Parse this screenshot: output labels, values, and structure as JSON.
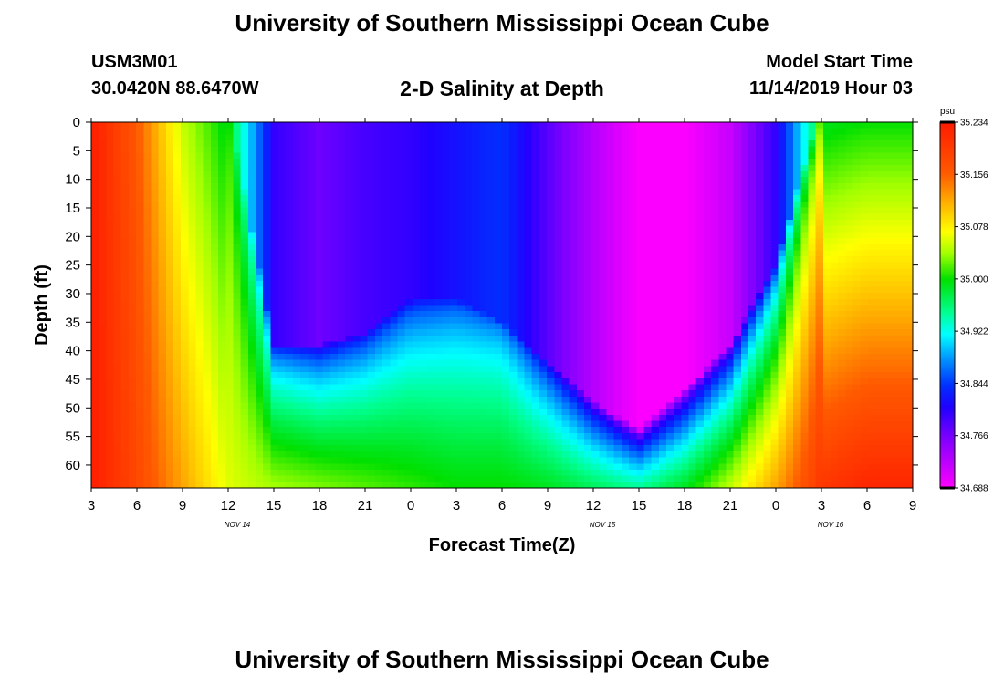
{
  "header": {
    "title": "University of Southern Mississippi Ocean Cube",
    "station_id": "USM3M01",
    "station_location": "30.0420N 88.6470W",
    "model_start_label": "Model Start Time",
    "model_start_value": "11/14/2019 Hour 03"
  },
  "footer": {
    "title": "University of Southern Mississippi Ocean Cube"
  },
  "colors": {
    "background": "#ffffff",
    "axis": "#000000"
  },
  "chart_data": {
    "type": "heatmap",
    "title": "2-D Salinity at Depth",
    "xlabel": "Forecast Time(Z)",
    "ylabel": "Depth (ft)",
    "x_ticks": [
      "3",
      "6",
      "9",
      "12",
      "15",
      "18",
      "21",
      "0",
      "3",
      "6",
      "9",
      "12",
      "15",
      "18",
      "21",
      "0",
      "3",
      "6",
      "9"
    ],
    "date_labels": [
      {
        "label": "NOV 14",
        "after_tick": 3
      },
      {
        "label": "NOV 15",
        "after_tick": 11
      },
      {
        "label": "NOV 16",
        "after_tick": 16
      }
    ],
    "y_ticks": [
      "0",
      "5",
      "10",
      "15",
      "20",
      "25",
      "30",
      "35",
      "40",
      "45",
      "50",
      "55",
      "60"
    ],
    "ylim": [
      0,
      64
    ],
    "colorbar": {
      "unit": "psu",
      "min": 34.688,
      "max": 35.234,
      "tick_labels": [
        "35.234",
        "35.156",
        "35.078",
        "35.000",
        "34.922",
        "34.844",
        "34.766",
        "34.688"
      ]
    },
    "field_description_hours": [
      0,
      3,
      6,
      9,
      12,
      15,
      18,
      21,
      24,
      27,
      30,
      33,
      36,
      39,
      42,
      45,
      48,
      51,
      54
    ],
    "freshwater_layer_bottom_ft": [
      0,
      0,
      0,
      0,
      42,
      42,
      40,
      34,
      34,
      38,
      45,
      52,
      57,
      50,
      42,
      28,
      0,
      0,
      0
    ],
    "freshwater_core_value_psu": [
      35.23,
      35.16,
      35.05,
      34.99,
      34.8,
      34.77,
      34.79,
      34.8,
      34.82,
      34.84,
      34.78,
      34.73,
      34.69,
      34.69,
      34.72,
      34.8,
      34.99,
      35.0,
      35.0
    ],
    "bottom_value_psu": [
      35.23,
      35.18,
      35.12,
      35.06,
      35.04,
      35.03,
      35.02,
      35.01,
      35.0,
      35.0,
      34.99,
      34.97,
      34.95,
      34.99,
      35.05,
      35.12,
      35.2,
      35.22,
      35.22
    ]
  }
}
